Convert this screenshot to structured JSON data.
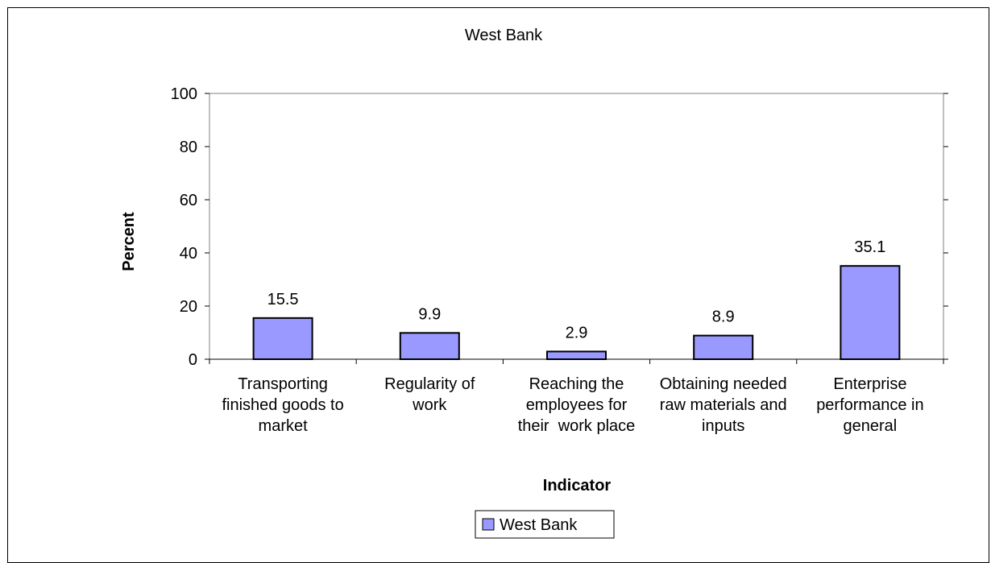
{
  "chart_data": {
    "type": "bar",
    "title": "West Bank",
    "xlabel": "Indicator",
    "ylabel": "Percent",
    "categories": [
      [
        "Transporting",
        "finished goods to",
        "market"
      ],
      [
        "Regularity of",
        "work"
      ],
      [
        "Reaching the",
        "employees for",
        "their  work place"
      ],
      [
        "Obtaining needed",
        "raw materials and",
        "inputs"
      ],
      [
        "Enterprise",
        "performance in",
        "general"
      ]
    ],
    "series": [
      {
        "name": "West Bank",
        "values": [
          15.5,
          9.9,
          2.9,
          8.9,
          35.1
        ],
        "labels": [
          "15.5",
          "9.9",
          "2.9",
          "8.9",
          "35.1"
        ]
      }
    ],
    "ylim": [
      0,
      100
    ],
    "yticks": [
      0,
      20,
      40,
      60,
      80,
      100
    ],
    "ytick_labels": [
      "0",
      "20",
      "40",
      "60",
      "80",
      "100"
    ],
    "legend_position": "bottom",
    "grid": false,
    "colors": {
      "bar_fill": "#9999ff",
      "bar_stroke": "#000000",
      "axis": "#000000",
      "plot_border": "#808080"
    }
  }
}
